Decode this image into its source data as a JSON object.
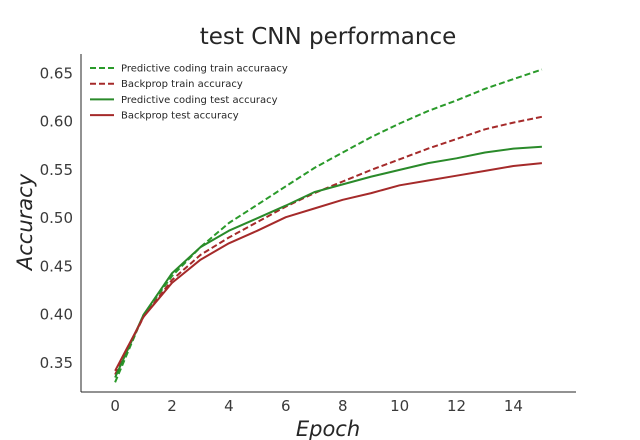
{
  "chart_data": {
    "type": "line",
    "title": "test CNN performance",
    "xlabel": "Epoch",
    "ylabel": "Accuracy",
    "xlim": [
      -1.2,
      16.2
    ],
    "ylim": [
      0.32,
      0.67
    ],
    "xticks": [
      0,
      2,
      4,
      6,
      8,
      10,
      12,
      14
    ],
    "yticks": [
      0.35,
      0.4,
      0.45,
      0.5,
      0.55,
      0.6,
      0.65
    ],
    "ytick_labels": [
      "0.35",
      "0.40",
      "0.45",
      "0.50",
      "0.55",
      "0.60",
      "0.65"
    ],
    "grid": false,
    "legend_position": "top-left",
    "x": [
      0,
      1,
      2,
      3,
      4,
      5,
      6,
      7,
      8,
      9,
      10,
      11,
      12,
      13,
      14,
      15
    ],
    "series": [
      {
        "name": "Predictive coding train accuraacy",
        "color": "#2a9a2a",
        "dash": "dashed",
        "values": [
          0.33,
          0.4,
          0.44,
          0.47,
          0.495,
          0.514,
          0.533,
          0.552,
          0.568,
          0.584,
          0.598,
          0.611,
          0.622,
          0.634,
          0.644,
          0.654
        ]
      },
      {
        "name": "Backprop train accuracy",
        "color": "#a52a2a",
        "dash": "dashed",
        "values": [
          0.338,
          0.398,
          0.436,
          0.462,
          0.48,
          0.496,
          0.512,
          0.526,
          0.538,
          0.55,
          0.561,
          0.572,
          0.582,
          0.592,
          0.599,
          0.605
        ]
      },
      {
        "name": "Predictive coding test accuracy",
        "color": "#2a8a2a",
        "dash": "solid",
        "values": [
          0.335,
          0.4,
          0.443,
          0.47,
          0.487,
          0.5,
          0.513,
          0.527,
          0.535,
          0.543,
          0.55,
          0.557,
          0.562,
          0.568,
          0.572,
          0.574
        ]
      },
      {
        "name": "Backprop test accuracy",
        "color": "#a52a2a",
        "dash": "solid",
        "values": [
          0.342,
          0.398,
          0.433,
          0.457,
          0.474,
          0.487,
          0.501,
          0.51,
          0.519,
          0.526,
          0.534,
          0.539,
          0.544,
          0.549,
          0.554,
          0.557
        ]
      }
    ]
  }
}
